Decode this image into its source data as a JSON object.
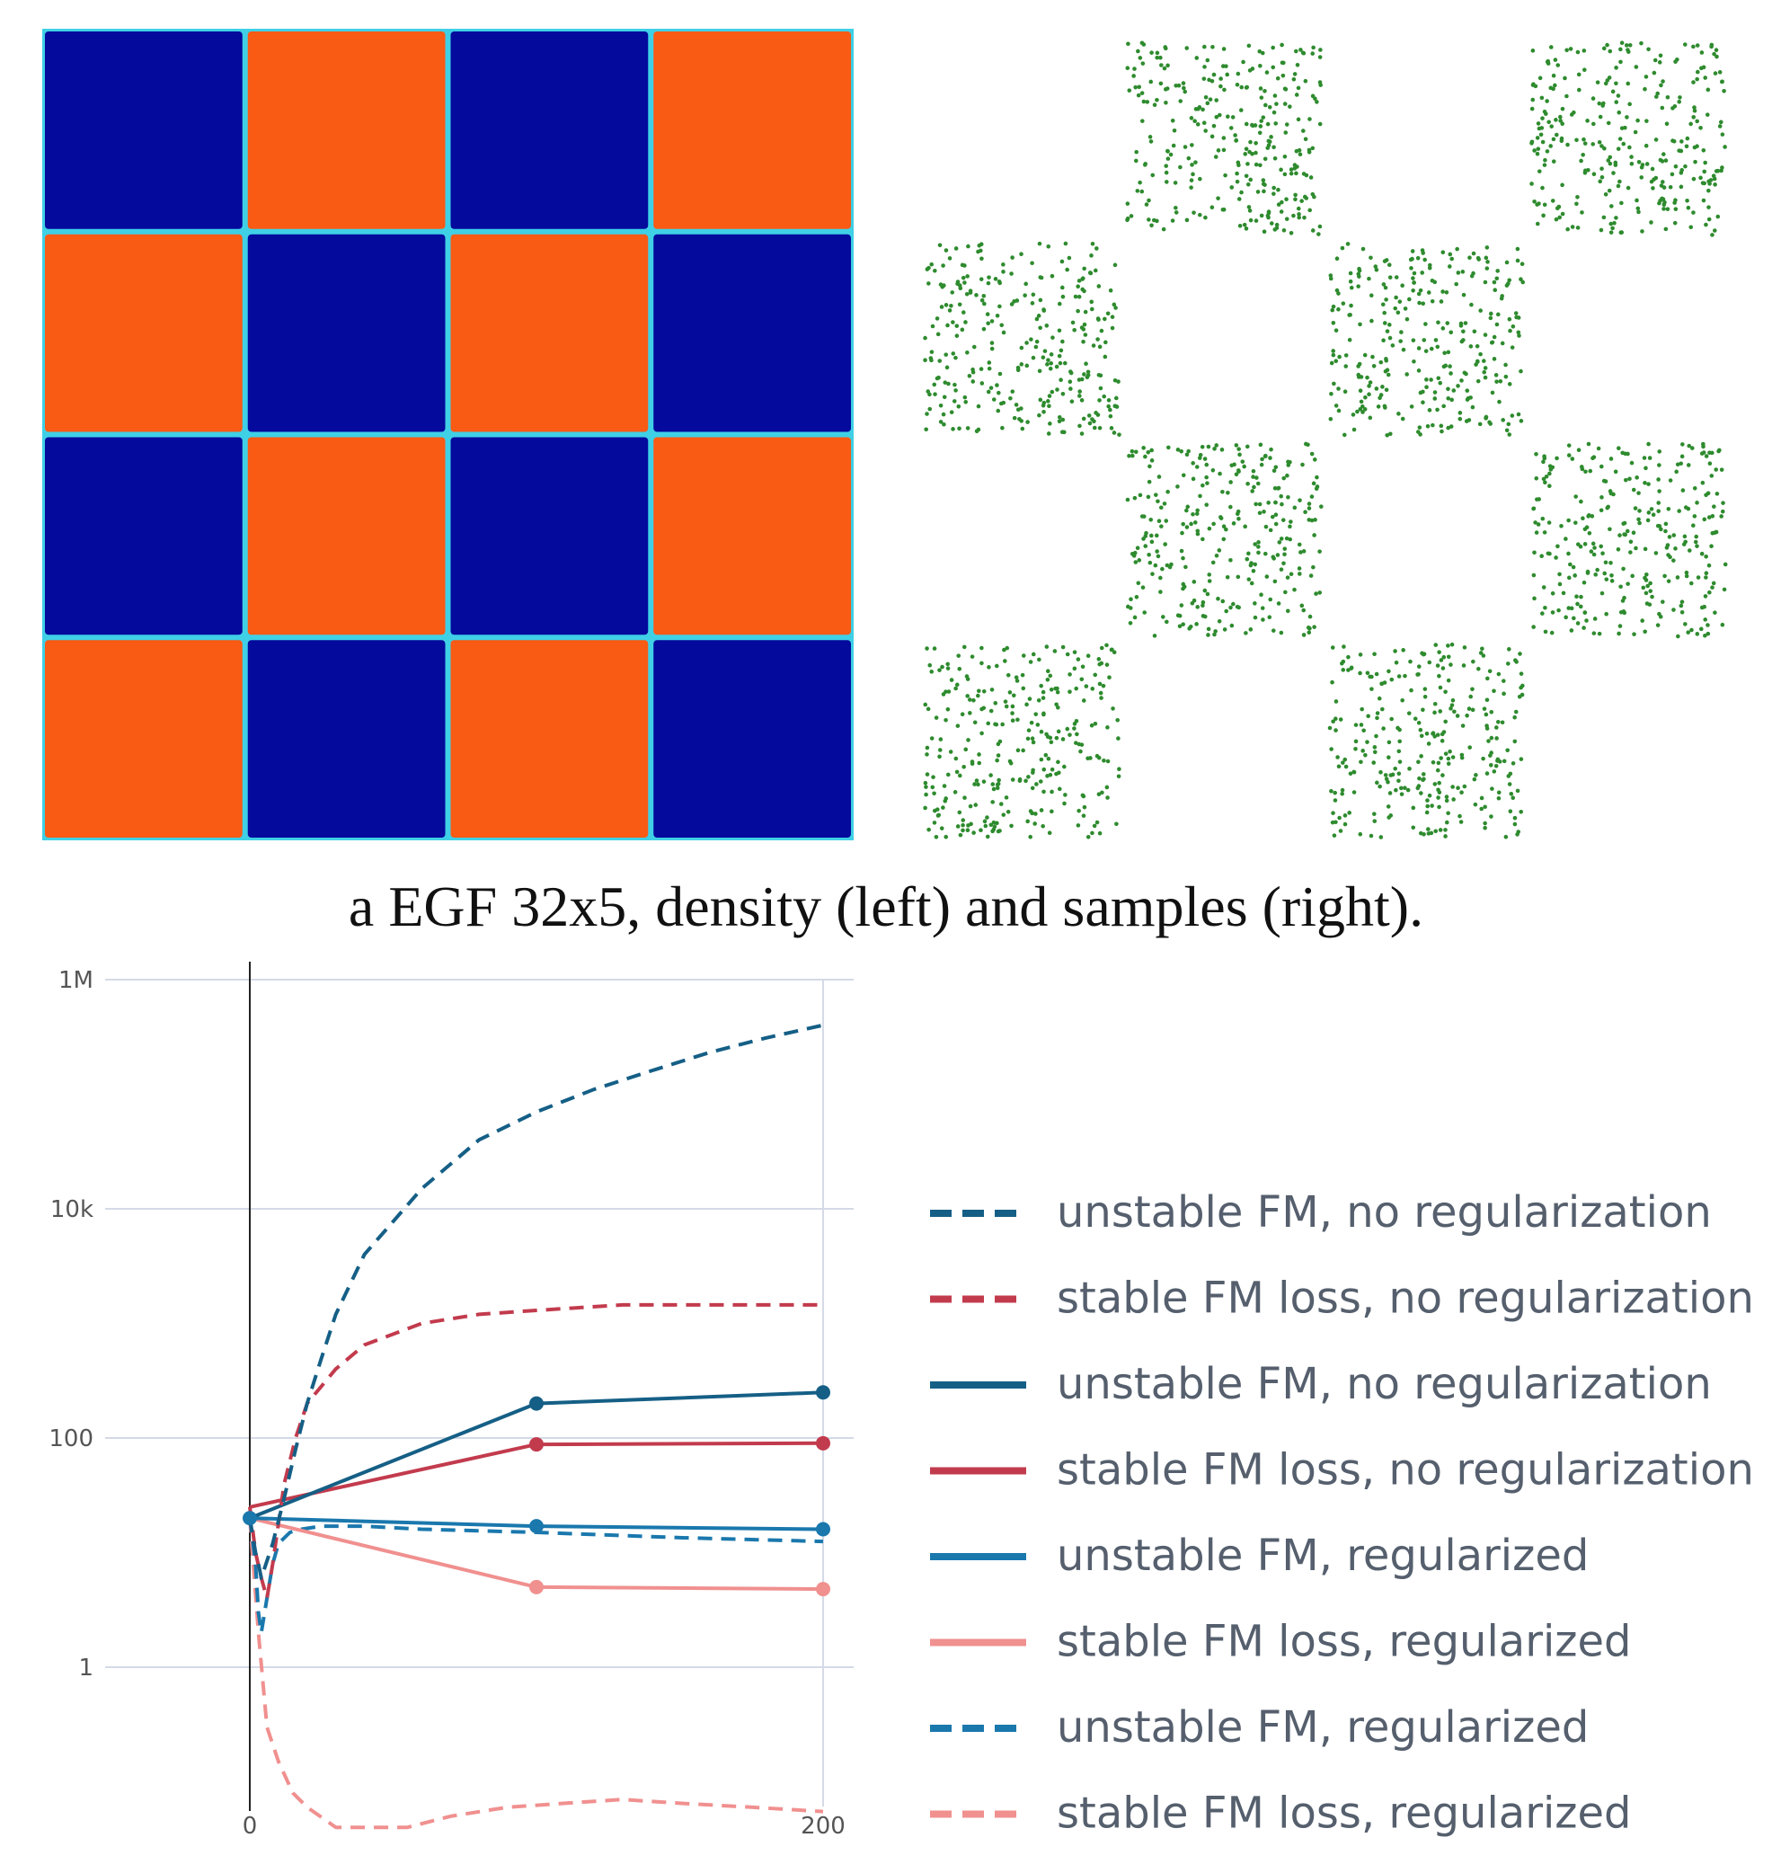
{
  "caption": "a EGF 32x5, density (left) and samples (right).",
  "colors": {
    "density_high": "#f95a14",
    "density_low": "#040a9c",
    "density_edge": "#3fd0e6",
    "samples": "#2e8b2e",
    "dark_blue": "#155f86",
    "dark_red": "#c23b4d",
    "mid_blue": "#1a78ad",
    "light_red": "#f0908f",
    "legend_text": "#555f6d",
    "grid": "#d4dae6",
    "axis": "#222222"
  },
  "chart_data": [
    {
      "type": "heatmap",
      "title": "density",
      "grid": [
        [
          0,
          1,
          0,
          1
        ],
        [
          1,
          0,
          1,
          0
        ],
        [
          0,
          1,
          0,
          1
        ],
        [
          1,
          0,
          1,
          0
        ]
      ]
    },
    {
      "type": "scatter",
      "title": "samples",
      "occupied_cells": [
        [
          0,
          1
        ],
        [
          0,
          3
        ],
        [
          1,
          0
        ],
        [
          1,
          2
        ],
        [
          2,
          1
        ],
        [
          2,
          3
        ],
        [
          3,
          0
        ],
        [
          3,
          2
        ]
      ]
    },
    {
      "type": "line",
      "ylog": true,
      "ylim": [
        0.01,
        1000000
      ],
      "xlim": [
        0,
        200
      ],
      "yticks": [
        {
          "value": 1,
          "label": "1"
        },
        {
          "value": 100,
          "label": "100"
        },
        {
          "value": 10000,
          "label": "10k"
        },
        {
          "value": 1000000,
          "label": "1M"
        }
      ],
      "xticks": [
        {
          "value": 0,
          "label": "0"
        },
        {
          "value": 200,
          "label": "200"
        }
      ],
      "legend_position": "right",
      "series": [
        {
          "name": "unstable FM, no regularization",
          "color": "#155f86",
          "dash": true,
          "markers": false,
          "x": [
            0,
            2,
            3,
            4,
            8,
            12,
            16,
            20,
            25,
            30,
            40,
            60,
            80,
            100,
            120,
            140,
            160,
            180,
            200
          ],
          "y": [
            20,
            10,
            8,
            6,
            12,
            30,
            80,
            200,
            500,
            1200,
            4000,
            15000,
            40000,
            70000,
            110000,
            160000,
            230000,
            310000,
            400000
          ]
        },
        {
          "name": "stable FM loss, no regularization",
          "color": "#c23b4d",
          "dash": true,
          "markers": false,
          "x": [
            0,
            2,
            4,
            6,
            8,
            10,
            12,
            16,
            20,
            30,
            40,
            60,
            80,
            100,
            130,
            160,
            200
          ],
          "y": [
            25,
            10,
            6,
            4,
            8,
            18,
            40,
            100,
            200,
            400,
            650,
            1000,
            1200,
            1300,
            1450,
            1450,
            1450
          ]
        },
        {
          "name": "unstable FM, no regularization",
          "color": "#155f86",
          "dash": false,
          "markers": true,
          "x": [
            0,
            100,
            200
          ],
          "y": [
            20,
            200,
            250
          ]
        },
        {
          "name": "stable FM loss, no regularization",
          "color": "#c23b4d",
          "dash": false,
          "markers": true,
          "x": [
            0,
            100,
            200
          ],
          "y": [
            25,
            88,
            90
          ]
        },
        {
          "name": "unstable FM, regularized",
          "color": "#1a78ad",
          "dash": false,
          "markers": true,
          "x": [
            0,
            100,
            200
          ],
          "y": [
            20,
            17,
            16
          ]
        },
        {
          "name": "stable FM loss, regularized",
          "color": "#f0908f",
          "dash": false,
          "markers": true,
          "x": [
            0,
            100,
            200
          ],
          "y": [
            20,
            5,
            4.8
          ]
        },
        {
          "name": "unstable FM, regularized",
          "color": "#1a78ad",
          "dash": true,
          "markers": false,
          "x": [
            0,
            2,
            3,
            4,
            6,
            8,
            10,
            14,
            18,
            25,
            40,
            60,
            100,
            150,
            200
          ],
          "y": [
            20,
            8,
            3,
            2,
            4,
            8,
            12,
            15,
            16,
            17,
            17,
            16,
            15,
            13.5,
            12.5
          ]
        },
        {
          "name": "stable FM loss, regularized",
          "color": "#f0908f",
          "dash": true,
          "markers": false,
          "x": [
            0,
            3,
            6,
            10,
            15,
            20,
            30,
            40,
            55,
            70,
            90,
            110,
            130,
            150,
            175,
            200
          ],
          "y": [
            20,
            2,
            0.3,
            0.15,
            0.08,
            0.06,
            0.04,
            0.04,
            0.04,
            0.05,
            0.06,
            0.065,
            0.07,
            0.065,
            0.06,
            0.055
          ]
        }
      ]
    }
  ]
}
